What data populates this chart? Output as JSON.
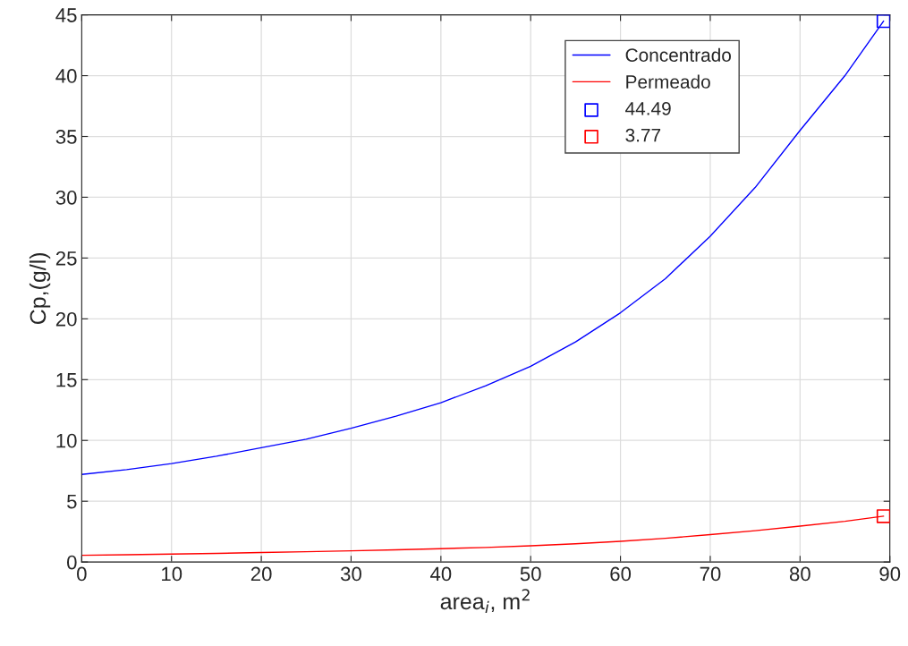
{
  "chart_data": {
    "type": "line",
    "xlabel": "area$_{i}$, m$^{2}$",
    "ylabel": "Cp,(g/l)",
    "x": [
      0,
      5,
      10,
      15,
      20,
      25,
      30,
      35,
      40,
      45,
      50,
      55,
      60,
      65,
      70,
      75,
      80,
      85,
      89.3
    ],
    "series": [
      {
        "name": "Concentrado",
        "color": "#0000ff",
        "values": [
          7.2,
          7.6,
          8.1,
          8.7,
          9.4,
          10.1,
          11.0,
          12.0,
          13.1,
          14.5,
          16.1,
          18.1,
          20.5,
          23.3,
          26.8,
          30.8,
          35.5,
          40.0,
          44.49
        ]
      },
      {
        "name": "Permeado",
        "color": "#ff0000",
        "values": [
          0.55,
          0.6,
          0.65,
          0.71,
          0.78,
          0.85,
          0.92,
          1.0,
          1.1,
          1.2,
          1.33,
          1.5,
          1.7,
          1.95,
          2.25,
          2.58,
          2.95,
          3.35,
          3.77
        ]
      },
      {
        "name": "44.49",
        "type": "scatter",
        "color": "#0000ff",
        "marker": "square",
        "x": [
          89.3
        ],
        "values": [
          44.49
        ]
      },
      {
        "name": "3.77",
        "type": "scatter",
        "color": "#ff0000",
        "marker": "square",
        "x": [
          89.3
        ],
        "values": [
          3.77
        ]
      }
    ],
    "xlim": [
      0,
      90
    ],
    "xticks": [
      0,
      10,
      20,
      30,
      40,
      50,
      60,
      70,
      80,
      90
    ],
    "ylim": [
      0,
      45
    ],
    "yticks": [
      0,
      5,
      10,
      15,
      20,
      25,
      30,
      35,
      40,
      45
    ],
    "grid": true,
    "legend": "top right"
  }
}
